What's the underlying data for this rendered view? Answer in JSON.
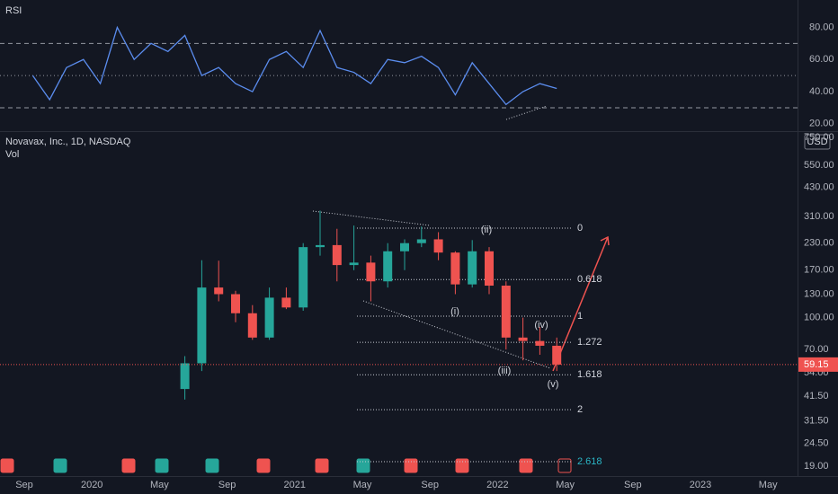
{
  "header": {
    "rsi_label": "RSI",
    "symbol": "Novavax, Inc., 1D, NASDAQ",
    "vol_label": "Vol",
    "currency": "USD",
    "last_price": 59.15
  },
  "waves": [
    "(i)",
    "(ii)",
    "(iii)",
    "(iv)",
    "(v)"
  ],
  "chart_data": [
    {
      "type": "line",
      "name": "RSI",
      "color": "#5b8def",
      "x": [
        "2019-09",
        "2019-10",
        "2019-11",
        "2019-12",
        "2020-01",
        "2020-02",
        "2020-03",
        "2020-04",
        "2020-05",
        "2020-06",
        "2020-07",
        "2020-08",
        "2020-09",
        "2020-10",
        "2020-11",
        "2020-12",
        "2021-01",
        "2021-02",
        "2021-03",
        "2021-04",
        "2021-05",
        "2021-06",
        "2021-07",
        "2021-08",
        "2021-09",
        "2021-10",
        "2021-11",
        "2021-12",
        "2022-01",
        "2022-02",
        "2022-03",
        "2022-04"
      ],
      "values": [
        50,
        35,
        55,
        60,
        45,
        80,
        60,
        70,
        65,
        75,
        50,
        55,
        45,
        40,
        60,
        65,
        55,
        78,
        55,
        52,
        45,
        60,
        58,
        62,
        55,
        38,
        58,
        45,
        32,
        40,
        45,
        42
      ],
      "ylim": [
        16,
        97
      ],
      "levels": [
        30,
        50,
        70
      ],
      "yticks": [
        {
          "value": 20,
          "label": "20.00"
        },
        {
          "value": 40,
          "label": "40.00"
        },
        {
          "value": 60,
          "label": "60.00"
        },
        {
          "value": 80,
          "label": "80.00"
        }
      ]
    },
    {
      "type": "candlestick",
      "x": [
        "2020-06",
        "2020-07",
        "2020-08",
        "2020-09",
        "2020-10",
        "2020-11",
        "2020-12",
        "2021-01",
        "2021-02",
        "2021-03",
        "2021-04",
        "2021-05",
        "2021-06",
        "2021-07",
        "2021-08",
        "2021-09",
        "2021-10",
        "2021-11",
        "2021-12",
        "2022-01",
        "2022-02",
        "2022-03",
        "2022-04"
      ],
      "open": [
        45,
        60,
        140,
        130,
        105,
        80,
        125,
        112,
        220,
        225,
        180,
        185,
        150,
        210,
        230,
        240,
        207,
        145,
        210,
        143,
        80,
        77,
        73
      ],
      "high": [
        65,
        190,
        189,
        135,
        115,
        140,
        140,
        230,
        331,
        270,
        280,
        200,
        230,
        240,
        277,
        260,
        210,
        238,
        220,
        150,
        100,
        90,
        80
      ],
      "low": [
        40,
        55,
        120,
        95,
        78,
        78,
        110,
        108,
        200,
        150,
        170,
        120,
        140,
        170,
        220,
        190,
        130,
        140,
        130,
        70,
        62,
        66,
        55
      ],
      "close": [
        60,
        140,
        130,
        105,
        80,
        125,
        112,
        220,
        225,
        180,
        185,
        150,
        210,
        230,
        240,
        207,
        145,
        210,
        143,
        80,
        77,
        73,
        59.15
      ],
      "up_color": "#26a69a",
      "down_color": "#ef5350",
      "ylim": [
        17,
        789
      ],
      "log_scale": true,
      "yticks": [
        {
          "value": 19,
          "label": "19.00"
        },
        {
          "value": 24.5,
          "label": "24.50"
        },
        {
          "value": 31.5,
          "label": "31.50"
        },
        {
          "value": 41.5,
          "label": "41.50"
        },
        {
          "value": 54,
          "label": "54.00"
        },
        {
          "value": 70,
          "label": "70.00"
        },
        {
          "value": 100,
          "label": "100.00"
        },
        {
          "value": 130,
          "label": "130.00"
        },
        {
          "value": 170,
          "label": "170.00"
        },
        {
          "value": 230,
          "label": "230.00"
        },
        {
          "value": 310,
          "label": "310.00"
        },
        {
          "value": 430,
          "label": "430.00"
        },
        {
          "value": 550,
          "label": "550.00"
        },
        {
          "value": 750,
          "label": "750.00"
        }
      ],
      "xticks": [
        {
          "value": "2019-09",
          "label": "Sep"
        },
        {
          "value": "2020-01",
          "label": "2020"
        },
        {
          "value": "2020-05",
          "label": "May"
        },
        {
          "value": "2020-09",
          "label": "Sep"
        },
        {
          "value": "2021-01",
          "label": "2021"
        },
        {
          "value": "2021-05",
          "label": "May"
        },
        {
          "value": "2021-09",
          "label": "Sep"
        },
        {
          "value": "2022-01",
          "label": "2022"
        },
        {
          "value": "2022-05",
          "label": "May"
        },
        {
          "value": "2022-09",
          "label": "Sep"
        },
        {
          "value": "2023-01",
          "label": "2023"
        },
        {
          "value": "2023-05",
          "label": "May"
        }
      ],
      "fib_levels": [
        {
          "ratio": 0,
          "price": 272
        },
        {
          "ratio": 0.618,
          "price": 153
        },
        {
          "ratio": 1,
          "price": 101.6
        },
        {
          "ratio": 1.272,
          "price": 75.9
        },
        {
          "ratio": 1.618,
          "price": 52.8
        },
        {
          "ratio": 2,
          "price": 35.7
        },
        {
          "ratio": 2.618,
          "price": 19.96
        }
      ]
    }
  ]
}
